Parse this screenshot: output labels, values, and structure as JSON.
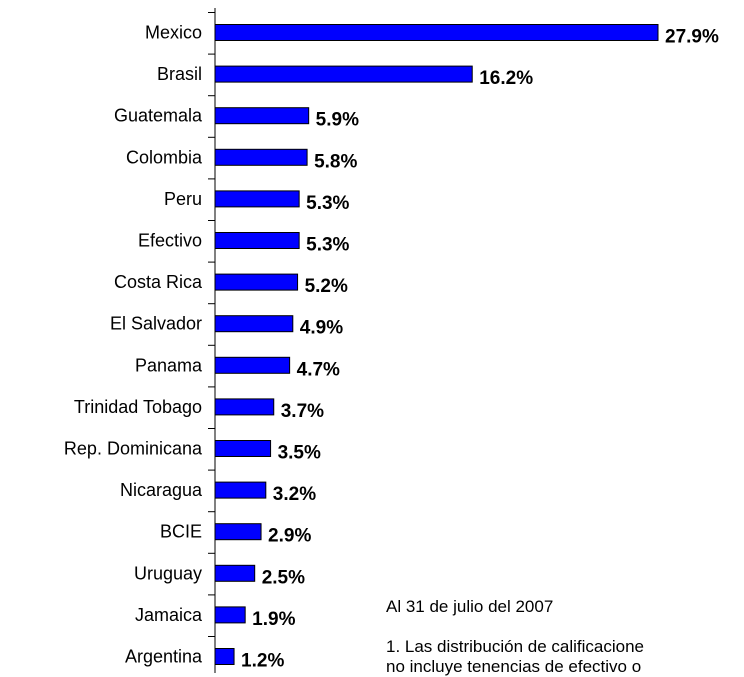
{
  "chart_data": {
    "type": "bar",
    "orientation": "horizontal",
    "categories": [
      "Mexico",
      "Brasil",
      "Guatemala",
      "Colombia",
      "Peru",
      "Efectivo",
      "Costa Rica",
      "El Salvador",
      "Panama",
      "Trinidad Tobago",
      "Rep. Dominicana",
      "Nicaragua",
      "BCIE",
      "Uruguay",
      "Jamaica",
      "Argentina"
    ],
    "values": [
      27.9,
      16.2,
      5.9,
      5.8,
      5.3,
      5.3,
      5.2,
      4.9,
      4.7,
      3.7,
      3.5,
      3.2,
      2.9,
      2.5,
      1.9,
      1.2
    ],
    "value_labels": [
      "27.9%",
      "16.2%",
      "5.9%",
      "5.8%",
      "5.3%",
      "5.3%",
      "5.2%",
      "4.9%",
      "4.7%",
      "3.7%",
      "3.5%",
      "3.2%",
      "2.9%",
      "2.5%",
      "1.9%",
      "1.2%"
    ],
    "title": "",
    "xlabel": "",
    "ylabel": "",
    "xlim": [
      0,
      27.9
    ],
    "bar_color": "#0000FF",
    "grid": false,
    "annotations": [
      "Al 31 de julio del 2007",
      "1. Las distribución de calificacione",
      "no incluye tenencias de efectivo o"
    ]
  }
}
